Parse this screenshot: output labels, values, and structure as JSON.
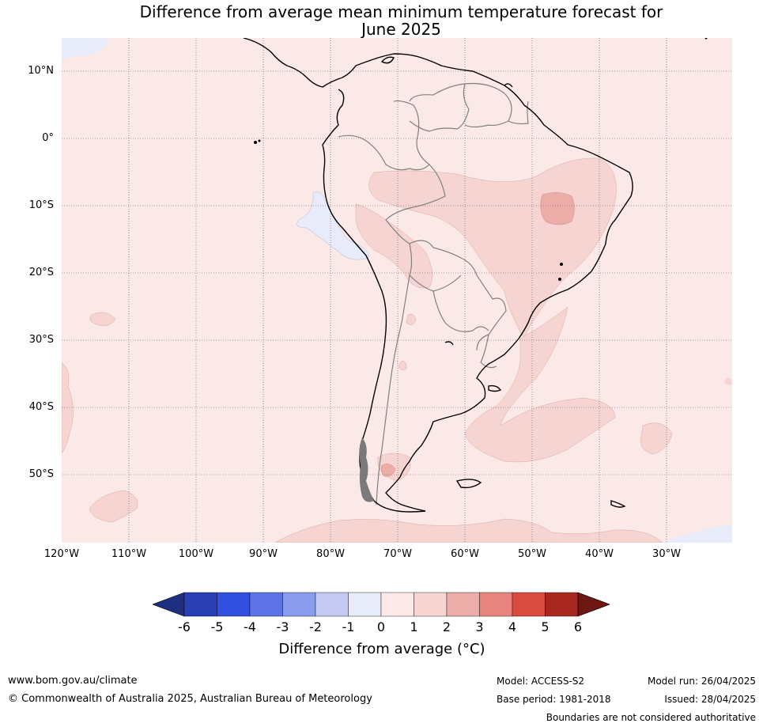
{
  "title_line1": "Difference from average mean minimum temperature forecast for",
  "title_line2": "June 2025",
  "lat_labels": [
    "10°N",
    "0°",
    "10°S",
    "20°S",
    "30°S",
    "40°S",
    "50°S"
  ],
  "lon_labels": [
    "120°W",
    "110°W",
    "100°W",
    "90°W",
    "80°W",
    "70°W",
    "60°W",
    "50°W",
    "40°W",
    "30°W"
  ],
  "colorbar": {
    "ticks": [
      "-6",
      "-5",
      "-4",
      "-3",
      "-2",
      "-1",
      "0",
      "1",
      "2",
      "3",
      "4",
      "5",
      "6"
    ],
    "colors": [
      "#1f2f80",
      "#2a3fb3",
      "#3250e0",
      "#5e74e6",
      "#8a9cee",
      "#c3c9f3",
      "#e8ebfa",
      "#fbe9e8",
      "#f5d4d2",
      "#ecaca7",
      "#e6847d",
      "#d94a3f",
      "#a8281f",
      "#6e1713"
    ],
    "label": "Difference from average (°C)"
  },
  "footer": {
    "website": "www.bom.gov.au/climate",
    "copyright": "© Commonwealth of Australia 2025, Australian Bureau of Meteorology",
    "model": "Model: ACCESS-S2",
    "base_period": "Base period: 1981-2018",
    "model_run": "Model run: 26/04/2025",
    "issued": "Issued: 28/04/2025",
    "disclaimer": "Boundaries are not considered authoritative"
  }
}
